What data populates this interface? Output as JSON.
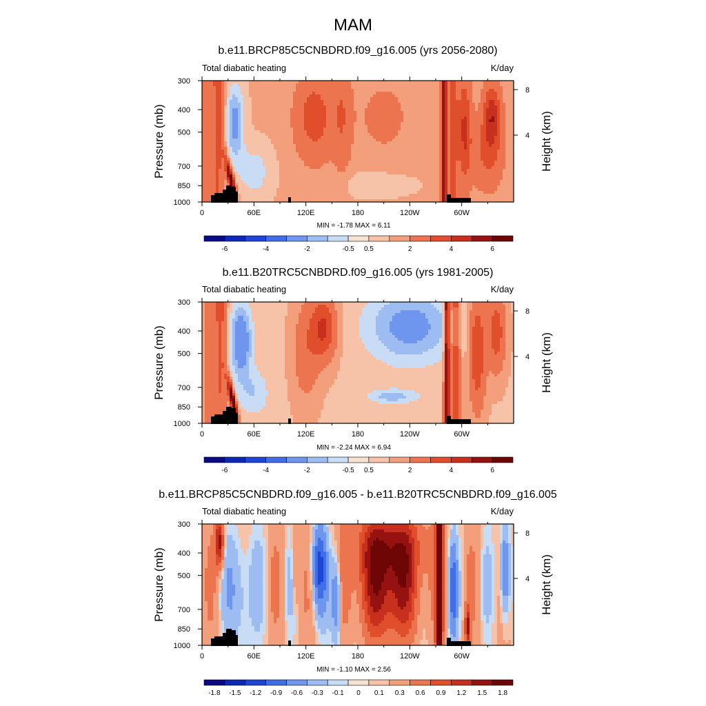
{
  "figure": {
    "season": "MAM"
  },
  "legend": {
    "colors": [
      "#0a0a84",
      "#0c28b4",
      "#1f45d6",
      "#3f6ee6",
      "#6f96ee",
      "#9dbdf2",
      "#c9dcf6",
      "#f6e2d0",
      "#f7c3a8",
      "#f49f7c",
      "#ec7550",
      "#e14e2c",
      "#c6301c",
      "#961210",
      "#6e0606"
    ]
  },
  "chart_data": [
    {
      "type": "heatmap",
      "title": "b.e11.BRCP85C5CNBDRD.f09_g16.005 (yrs 2056-2080)",
      "left_label": "Total diabatic heating",
      "units": "K/day",
      "ylabel": "Pressure (mb)",
      "ylabel_right": "Height (km)",
      "x_ticks": [
        "0",
        "60E",
        "120E",
        "180",
        "120W",
        "60W"
      ],
      "y_ticks": [
        "300",
        "400",
        "500",
        "700",
        "850",
        "1000"
      ],
      "height_ticks": [
        "8",
        "4"
      ],
      "stats": "MIN =  -1.78  MAX =   6.11",
      "colorbar_labels": [
        "-6",
        "-4",
        "-2",
        "-0.5",
        "0.5",
        "2",
        "4",
        "6"
      ],
      "x_range": [
        0,
        360
      ],
      "y_range": [
        1000,
        300
      ]
    },
    {
      "type": "heatmap",
      "title": "b.e11.B20TRC5CNBDRD.f09_g16.005 (yrs 1981-2005)",
      "left_label": "Total diabatic heating",
      "units": "K/day",
      "ylabel": "Pressure (mb)",
      "ylabel_right": "Height (km)",
      "x_ticks": [
        "0",
        "60E",
        "120E",
        "180",
        "120W",
        "60W"
      ],
      "y_ticks": [
        "300",
        "400",
        "500",
        "700",
        "850",
        "1000"
      ],
      "height_ticks": [
        "8",
        "4"
      ],
      "stats": "MIN =  -2.24  MAX =   6.94",
      "colorbar_labels": [
        "-6",
        "-4",
        "-2",
        "-0.5",
        "0.5",
        "2",
        "4",
        "6"
      ],
      "x_range": [
        0,
        360
      ],
      "y_range": [
        1000,
        300
      ]
    },
    {
      "type": "heatmap",
      "title": "b.e11.BRCP85C5CNBDRD.f09_g16.005 - b.e11.B20TRC5CNBDRD.f09_g16.005",
      "left_label": "Total diabatic heating",
      "units": "K/day",
      "ylabel": "Pressure (mb)",
      "ylabel_right": "Height (km)",
      "x_ticks": [
        "0",
        "60E",
        "120E",
        "180",
        "120W",
        "60W"
      ],
      "y_ticks": [
        "300",
        "400",
        "500",
        "700",
        "850",
        "1000"
      ],
      "height_ticks": [
        "8",
        "4"
      ],
      "stats": "MIN =  -1.10  MAX =   2.56",
      "colorbar_labels": [
        "-1.8",
        "-1.5",
        "-1.2",
        "-0.9",
        "-0.6",
        "-0.3",
        "-0.1",
        "0",
        "0.1",
        "0.3",
        "0.6",
        "0.9",
        "1.2",
        "1.5",
        "1.8"
      ],
      "x_range": [
        0,
        360
      ],
      "y_range": [
        1000,
        300
      ]
    }
  ]
}
